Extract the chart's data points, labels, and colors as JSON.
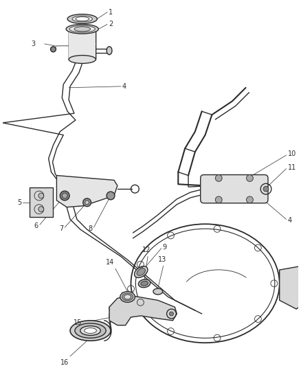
{
  "background_color": "#ffffff",
  "line_color": "#2a2a2a",
  "label_color": "#2a2a2a",
  "figsize": [
    4.38,
    5.33
  ],
  "dpi": 100,
  "lw_main": 1.0,
  "lw_thin": 0.6,
  "label_fs": 7.0
}
